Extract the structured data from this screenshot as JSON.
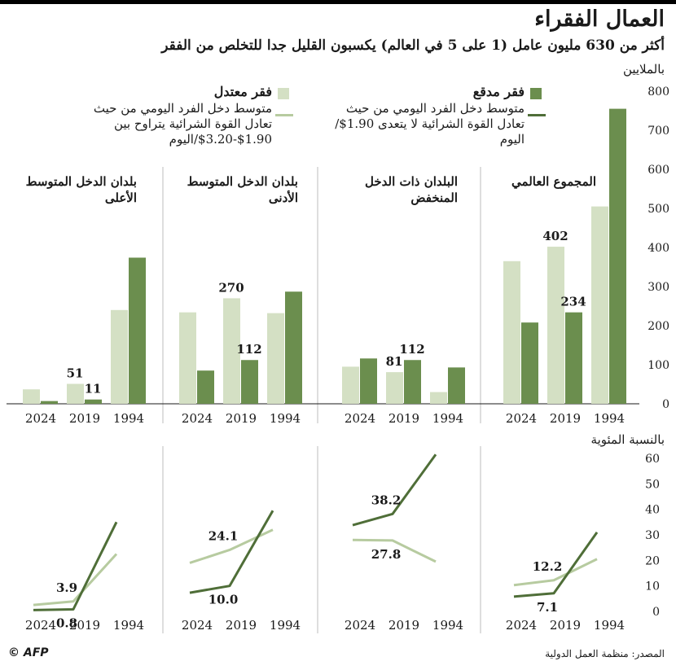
{
  "title": "العمال الفقراء",
  "subtitle": "أكثر من 630 مليون عامل (1 على 5 في العالم) يكسبون القليل جدا للتخلص من الفقر",
  "legend": {
    "extreme": {
      "title": "فقر مدقع",
      "desc": "متوسط دخل الفرد اليومي من حيث تعادل القوة الشرائية لا يتعدى 1.90$/اليوم",
      "color": "#6b8e4e"
    },
    "moderate": {
      "title": "فقر معتدل",
      "desc": "متوسط دخل الفرد اليومي من حيث تعادل القوة الشرائية يتراوح بين 1.90$-3.20$/اليوم",
      "color": "#d4e0c4",
      "line_color": "#b7cba0"
    }
  },
  "source": "المصدر: منظمة العمل الدولية",
  "credit": "© AFP",
  "chart_data": [
    {
      "type": "bar",
      "ylabel": "بالملايين",
      "ylim": [
        0,
        800
      ],
      "yticks": [
        "0",
        "100",
        "200",
        "300",
        "400",
        "500",
        "600",
        "700",
        "800"
      ],
      "panels": [
        {
          "title": "المجموع العالمي",
          "categories": [
            "1994",
            "2019",
            "2024"
          ],
          "series": [
            {
              "name": "فقر مدقع",
              "values": [
                755,
                234,
                208
              ]
            },
            {
              "name": "فقر معتدل",
              "values": [
                505,
                402,
                365
              ]
            }
          ],
          "labels": [
            {
              "text": "402",
              "series": 1,
              "index": 1
            },
            {
              "text": "234",
              "series": 0,
              "index": 1
            }
          ]
        },
        {
          "title": "البلدان ذات الدخل المنخفض",
          "categories": [
            "1994",
            "2019",
            "2024"
          ],
          "series": [
            {
              "name": "فقر مدقع",
              "values": [
                93,
                112,
                116
              ]
            },
            {
              "name": "فقر معتدل",
              "values": [
                30,
                81,
                95
              ]
            }
          ],
          "labels": [
            {
              "text": "81",
              "series": 1,
              "index": 1
            },
            {
              "text": "112",
              "series": 0,
              "index": 1
            }
          ]
        },
        {
          "title": "بلدان الدخل المتوسط الأدنى",
          "categories": [
            "1994",
            "2019",
            "2024"
          ],
          "series": [
            {
              "name": "فقر مدقع",
              "values": [
                287,
                112,
                85
              ]
            },
            {
              "name": "فقر معتدل",
              "values": [
                232,
                270,
                234
              ]
            }
          ],
          "labels": [
            {
              "text": "270",
              "series": 1,
              "index": 1
            },
            {
              "text": "112",
              "series": 0,
              "index": 1
            }
          ]
        },
        {
          "title": "بلدان الدخل المتوسط الأعلى",
          "categories": [
            "1994",
            "2019",
            "2024"
          ],
          "series": [
            {
              "name": "فقر مدقع",
              "values": [
                374,
                11,
                7
              ]
            },
            {
              "name": "فقر معتدل",
              "values": [
                240,
                51,
                37
              ]
            }
          ],
          "labels": [
            {
              "text": "51",
              "series": 1,
              "index": 1
            },
            {
              "text": "11",
              "series": 0,
              "index": 1
            }
          ]
        }
      ]
    },
    {
      "type": "line",
      "ylabel": "بالنسبة المئوية",
      "ylim": [
        0,
        60
      ],
      "yticks": [
        "0",
        "10",
        "20",
        "30",
        "40",
        "50",
        "60"
      ],
      "panels": [
        {
          "categories": [
            "1994",
            "2019",
            "2024"
          ],
          "series": [
            {
              "name": "فقر مدقع",
              "values": [
                31,
                7.1,
                5.8
              ]
            },
            {
              "name": "فقر معتدل",
              "values": [
                20.5,
                12.2,
                10.3
              ]
            }
          ],
          "labels": [
            {
              "text": "12.2",
              "series": 1,
              "index": 1
            },
            {
              "text": "7.1",
              "series": 0,
              "index": 1
            }
          ]
        },
        {
          "categories": [
            "1994",
            "2019",
            "2024"
          ],
          "series": [
            {
              "name": "فقر مدقع",
              "values": [
                61.5,
                38.2,
                33.8
              ]
            },
            {
              "name": "فقر معتدل",
              "values": [
                19.5,
                27.8,
                28
              ]
            }
          ],
          "labels": [
            {
              "text": "38.2",
              "series": 0,
              "index": 1
            },
            {
              "text": "27.8",
              "series": 1,
              "index": 1
            }
          ]
        },
        {
          "categories": [
            "1994",
            "2019",
            "2024"
          ],
          "series": [
            {
              "name": "فقر مدقع",
              "values": [
                39.5,
                10.0,
                7.3
              ]
            },
            {
              "name": "فقر معتدل",
              "values": [
                32,
                24.1,
                19
              ]
            }
          ],
          "labels": [
            {
              "text": "24.1",
              "series": 1,
              "index": 1
            },
            {
              "text": "10.0",
              "series": 0,
              "index": 1
            }
          ]
        },
        {
          "categories": [
            "1994",
            "2019",
            "2024"
          ],
          "series": [
            {
              "name": "فقر مدقع",
              "values": [
                35,
                0.8,
                0.5
              ]
            },
            {
              "name": "فقر معتدل",
              "values": [
                22.5,
                3.9,
                2.5
              ]
            }
          ],
          "labels": [
            {
              "text": "3.9",
              "series": 1,
              "index": 1
            },
            {
              "text": "0.8",
              "series": 0,
              "index": 1
            }
          ]
        }
      ]
    }
  ]
}
